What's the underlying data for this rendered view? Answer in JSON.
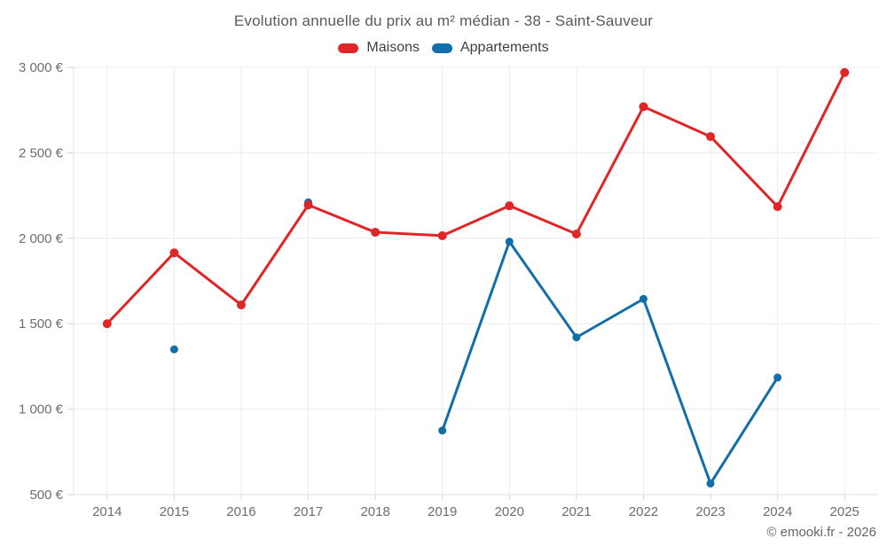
{
  "page": {
    "title": "Evolution annuelle du prix au m² médian - 38 - Saint-Sauveur",
    "footer": "© emooki.fr - 2026"
  },
  "colors": {
    "maisons": "#e02526",
    "appartements": "#126ea8",
    "grid": "#ececec",
    "axis": "#e2e2e2",
    "tick": "#d6d6d6",
    "label": "#6d6d6d"
  },
  "chart_data": {
    "type": "line",
    "title": "Evolution annuelle du prix au m² médian - 38 - Saint-Sauveur",
    "categories": [
      "2014",
      "2015",
      "2016",
      "2017",
      "2018",
      "2019",
      "2020",
      "2021",
      "2022",
      "2023",
      "2024",
      "2025"
    ],
    "series": [
      {
        "name": "Maisons",
        "color": "#e02526",
        "point_radius": 5,
        "values": [
          1500,
          1915,
          1610,
          2195,
          2035,
          2015,
          2190,
          2025,
          2770,
          2595,
          2185,
          2970
        ]
      },
      {
        "name": "Appartements",
        "color": "#126ea8",
        "point_radius": 4.5,
        "values": [
          null,
          1350,
          null,
          2210,
          null,
          875,
          1980,
          1420,
          1645,
          565,
          1185,
          null
        ]
      }
    ],
    "yticks": [
      {
        "value": 500,
        "label": "500 €"
      },
      {
        "value": 1000,
        "label": "1 000 €"
      },
      {
        "value": 1500,
        "label": "1 500 €"
      },
      {
        "value": 2000,
        "label": "2 000 €"
      },
      {
        "value": 2500,
        "label": "2 500 €"
      },
      {
        "value": 3000,
        "label": "3 000 €"
      }
    ],
    "ylim": [
      500,
      3000
    ],
    "grid": true,
    "legend_position": "top",
    "currency": "EUR"
  }
}
